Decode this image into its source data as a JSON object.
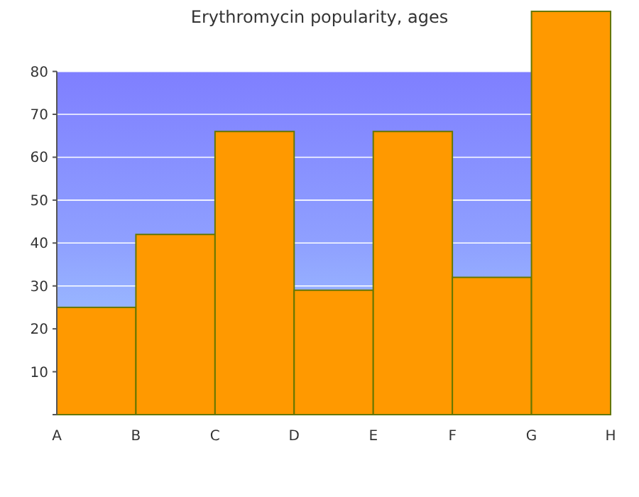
{
  "chart_data": {
    "type": "bar",
    "title": "Erythromycin popularity, ages",
    "categories": [
      "A",
      "B",
      "C",
      "D",
      "E",
      "F",
      "G",
      "H"
    ],
    "values": [
      25,
      42,
      66,
      29,
      66,
      32,
      94,
      null
    ],
    "color": "#ff9900",
    "ylim": [
      0,
      94
    ],
    "yticks": [
      {
        "value": 0,
        "label": null
      },
      10,
      20,
      30,
      40,
      50,
      60,
      70,
      80
    ],
    "bands": [
      {
        "axis": "y",
        "from": 0,
        "to": 80,
        "color": "#8fa0ff"
      }
    ],
    "grid": "y"
  }
}
